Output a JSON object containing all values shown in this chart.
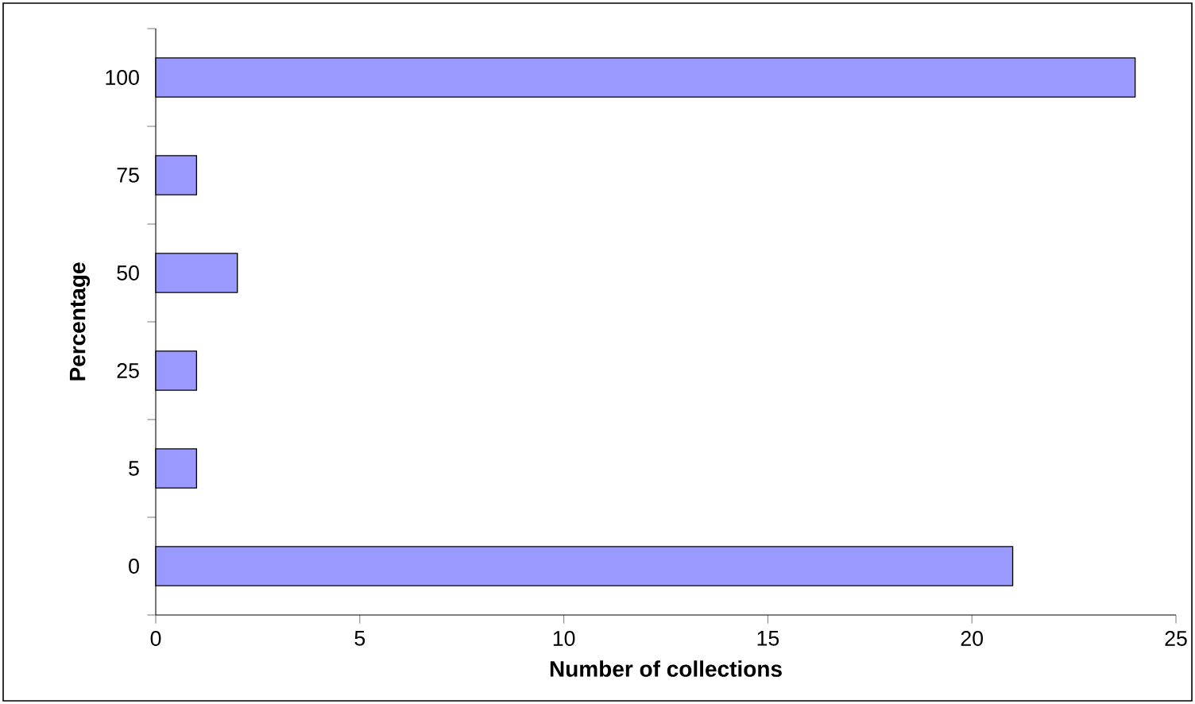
{
  "chart_data": {
    "type": "bar",
    "orientation": "horizontal",
    "xlabel": "Number of collections",
    "ylabel": "Percentage",
    "categories": [
      "100",
      "75",
      "50",
      "25",
      "5",
      "0"
    ],
    "values": [
      24,
      1,
      2,
      1,
      1,
      21
    ],
    "color": "#9999ff",
    "xlim": [
      0,
      25
    ],
    "xticks": [
      0,
      5,
      10,
      15,
      20,
      25
    ],
    "grid": false
  }
}
